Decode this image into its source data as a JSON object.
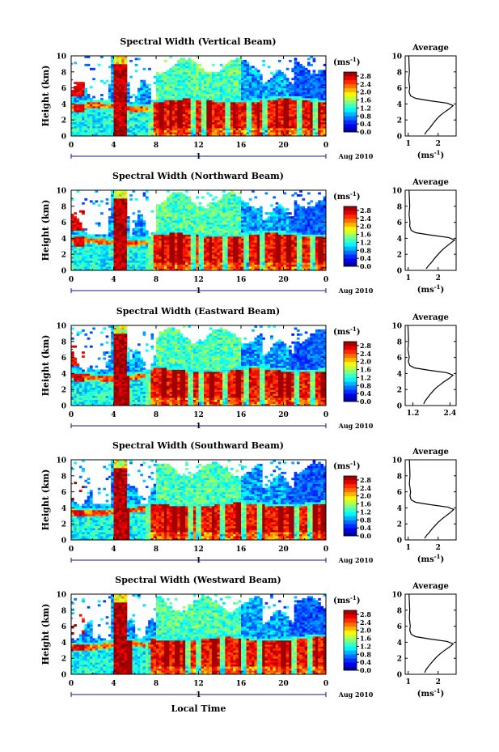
{
  "chart_data": [
    {
      "type": "heatmap",
      "title": "Spectral Width (Vertical Beam)",
      "ylabel": "Height (km)",
      "x_ticks": [
        "0",
        "4",
        "8",
        "12",
        "16",
        "20",
        "0"
      ],
      "y_ticks": [
        "0",
        "2",
        "4",
        "6",
        "8",
        "10"
      ],
      "date_marker": "1",
      "date_label": "Aug 2010",
      "xlim": [
        0,
        24
      ],
      "ylim": [
        0,
        10
      ],
      "colorbar": {
        "unit": "(ms",
        "unit_sup": "-1",
        "unit_close": ")",
        "ticks": [
          "0.0",
          "0.4",
          "0.8",
          "1.2",
          "1.6",
          "2.0",
          "2.4",
          "2.8"
        ],
        "range": [
          0,
          3.0
        ]
      },
      "profile": {
        "title": "Average",
        "xlabel": "(ms",
        "xlabel_sup": "-1",
        "xlabel_close": ")",
        "x_ticks": [
          "1",
          "2"
        ],
        "xlim": [
          0.9,
          2.6
        ],
        "heights": [
          0.2,
          0.6,
          1.0,
          1.4,
          1.8,
          2.2,
          2.6,
          3.0,
          3.4,
          3.8,
          4.1,
          4.4,
          4.7,
          5.0,
          5.5,
          6.0,
          7.0,
          8.0,
          9.0,
          10.0
        ],
        "values": [
          1.55,
          1.62,
          1.72,
          1.8,
          1.88,
          1.97,
          2.08,
          2.22,
          2.38,
          2.5,
          2.3,
          1.7,
          1.25,
          1.08,
          1.03,
          1.05,
          1.02,
          1.04,
          1.03,
          1.02
        ]
      }
    },
    {
      "type": "heatmap",
      "title": "Spectral Width (Northward Beam)",
      "ylabel": "Height (km)",
      "x_ticks": [
        "0",
        "4",
        "8",
        "12",
        "16",
        "20",
        "0"
      ],
      "y_ticks": [
        "0",
        "2",
        "4",
        "6",
        "8",
        "10"
      ],
      "date_marker": "1",
      "date_label": "Aug 2010",
      "xlim": [
        0,
        24
      ],
      "ylim": [
        0,
        10
      ],
      "colorbar": {
        "unit": "(ms",
        "unit_sup": "-1",
        "unit_close": ")",
        "ticks": [
          "0.0",
          "0.4",
          "0.8",
          "1.2",
          "1.6",
          "2.0",
          "2.4",
          "2.8"
        ],
        "range": [
          0,
          3.0
        ]
      },
      "profile": {
        "title": "Average",
        "xlabel": "(ms",
        "xlabel_sup": "-1",
        "xlabel_close": ")",
        "x_ticks": [
          "1",
          "2"
        ],
        "xlim": [
          0.9,
          2.6
        ],
        "heights": [
          0.2,
          0.6,
          1.0,
          1.4,
          1.8,
          2.2,
          2.6,
          3.0,
          3.4,
          3.8,
          4.1,
          4.4,
          4.7,
          5.0,
          5.5,
          6.0,
          7.0,
          8.0,
          9.0,
          10.0
        ],
        "values": [
          1.6,
          1.68,
          1.78,
          1.86,
          1.95,
          2.05,
          2.15,
          2.28,
          2.42,
          2.55,
          2.35,
          1.75,
          1.25,
          1.1,
          1.05,
          1.06,
          1.03,
          1.05,
          1.04,
          1.03
        ]
      }
    },
    {
      "type": "heatmap",
      "title": "Spectral Width (Eastward Beam)",
      "ylabel": "Height (km)",
      "x_ticks": [
        "0",
        "4",
        "8",
        "12",
        "16",
        "20",
        "0"
      ],
      "y_ticks": [
        "0",
        "2",
        "4",
        "6",
        "8",
        "10"
      ],
      "date_marker": "1",
      "date_label": "Aug 2010",
      "xlim": [
        0,
        24
      ],
      "ylim": [
        0,
        10
      ],
      "colorbar": {
        "unit": "(ms",
        "unit_sup": "-1",
        "unit_close": ")",
        "ticks": [
          "0.0",
          "0.4",
          "0.8",
          "1.2",
          "1.6",
          "2.0",
          "2.4",
          "2.8"
        ],
        "range": [
          0,
          3.0
        ]
      },
      "profile": {
        "title": "Average",
        "xlabel": "",
        "xlabel_sup": "",
        "xlabel_close": "",
        "x_ticks": [
          "1.2",
          "2.4"
        ],
        "xlim": [
          0.95,
          2.6
        ],
        "heights": [
          0.2,
          0.6,
          1.0,
          1.4,
          1.8,
          2.2,
          2.6,
          3.0,
          3.4,
          3.8,
          4.1,
          4.4,
          4.7,
          5.0,
          5.5,
          6.0,
          7.0,
          8.0,
          9.0,
          10.0
        ],
        "values": [
          1.55,
          1.6,
          1.68,
          1.76,
          1.85,
          1.95,
          2.08,
          2.22,
          2.38,
          2.5,
          2.3,
          1.72,
          1.25,
          1.1,
          1.05,
          1.08,
          1.04,
          1.06,
          1.05,
          1.04
        ]
      }
    },
    {
      "type": "heatmap",
      "title": "Spectral Width (Southward Beam)",
      "ylabel": "Height (km)",
      "x_ticks": [
        "0",
        "4",
        "8",
        "12",
        "16",
        "20",
        "0"
      ],
      "y_ticks": [
        "0",
        "2",
        "4",
        "6",
        "8",
        "10"
      ],
      "date_marker": "1",
      "date_label": "Aug 2010",
      "xlim": [
        0,
        24
      ],
      "ylim": [
        0,
        10
      ],
      "colorbar": {
        "unit": "(ms",
        "unit_sup": "-1",
        "unit_close": ")",
        "ticks": [
          "0.0",
          "0.4",
          "0.8",
          "1.2",
          "1.6",
          "2.0",
          "2.4",
          "2.8"
        ],
        "range": [
          0,
          3.0
        ]
      },
      "profile": {
        "title": "Average",
        "xlabel": "(ms",
        "xlabel_sup": "-1",
        "xlabel_close": ")",
        "x_ticks": [
          "1",
          "2"
        ],
        "xlim": [
          0.9,
          2.6
        ],
        "heights": [
          0.2,
          0.6,
          1.0,
          1.4,
          1.8,
          2.2,
          2.6,
          3.0,
          3.4,
          3.8,
          4.1,
          4.4,
          4.7,
          5.0,
          5.5,
          6.0,
          7.0,
          8.0,
          9.0,
          10.0
        ],
        "values": [
          1.55,
          1.62,
          1.72,
          1.8,
          1.9,
          2.0,
          2.12,
          2.26,
          2.4,
          2.52,
          2.32,
          1.72,
          1.25,
          1.1,
          1.06,
          1.08,
          1.04,
          1.06,
          1.05,
          1.04
        ]
      }
    },
    {
      "type": "heatmap",
      "title": "Spectral Width (Westward Beam)",
      "ylabel": "Height (km)",
      "x_ticks": [
        "0",
        "4",
        "8",
        "12",
        "16",
        "20",
        "0"
      ],
      "y_ticks": [
        "0",
        "2",
        "4",
        "6",
        "8",
        "10"
      ],
      "date_marker": "1",
      "date_label": "Aug 2010",
      "xlim": [
        0,
        24
      ],
      "ylim": [
        0,
        10
      ],
      "colorbar": {
        "unit": "(ms",
        "unit_sup": "-1",
        "unit_close": ")",
        "ticks": [
          "0.0",
          "0.4",
          "0.8",
          "1.2",
          "1.6",
          "2.0",
          "2.4",
          "2.8"
        ],
        "range": [
          0,
          3.0
        ]
      },
      "profile": {
        "title": "Average",
        "xlabel": "(ms",
        "xlabel_sup": "-1",
        "xlabel_close": ")",
        "x_ticks": [
          "1",
          "2"
        ],
        "xlim": [
          0.9,
          2.6
        ],
        "heights": [
          0.2,
          0.6,
          1.0,
          1.4,
          1.8,
          2.2,
          2.6,
          3.0,
          3.4,
          3.8,
          4.1,
          4.4,
          4.7,
          5.0,
          5.5,
          6.0,
          7.0,
          8.0,
          9.0,
          10.0
        ],
        "values": [
          1.55,
          1.6,
          1.68,
          1.77,
          1.86,
          1.96,
          2.08,
          2.22,
          2.38,
          2.5,
          2.3,
          1.72,
          1.25,
          1.1,
          1.05,
          1.07,
          1.04,
          1.05,
          1.04,
          1.03
        ]
      }
    }
  ],
  "xlabel": "Local Time"
}
